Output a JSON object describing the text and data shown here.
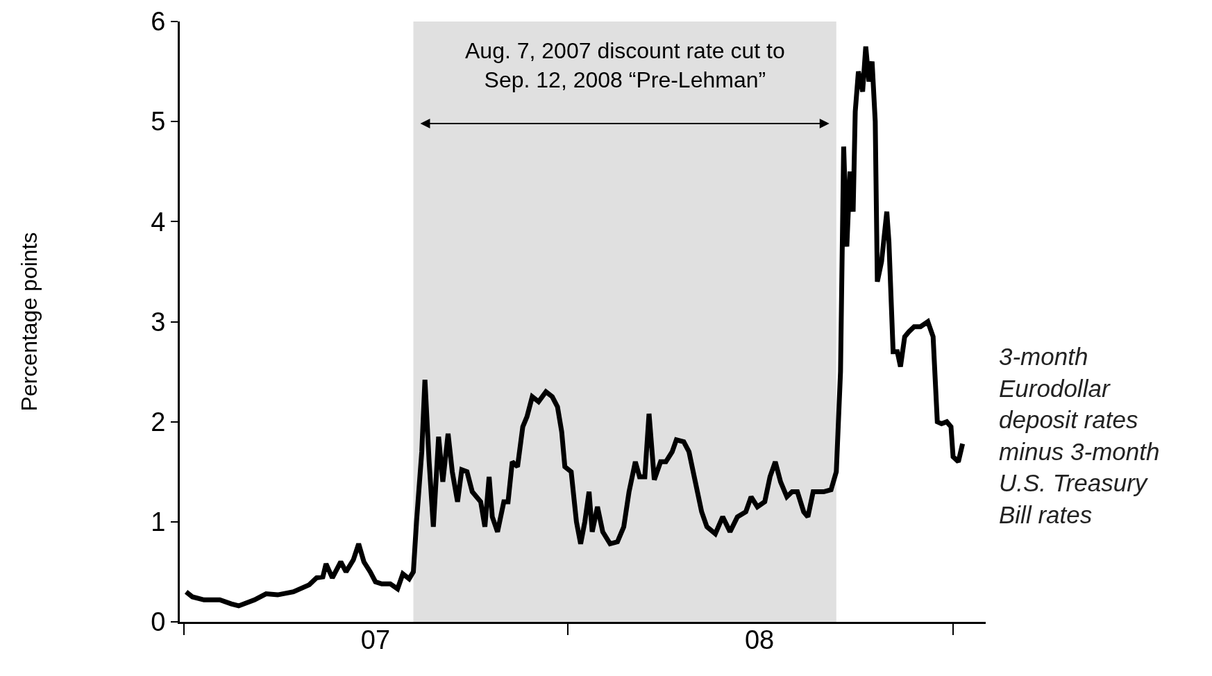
{
  "chart_data": {
    "type": "line",
    "ylabel": "Percentage points",
    "x": [
      "2007-01-03",
      "2007-01-09",
      "2007-01-20",
      "2007-02-04",
      "2007-02-15",
      "2007-02-22",
      "2007-03-09",
      "2007-03-20",
      "2007-03-31",
      "2007-04-15",
      "2007-04-30",
      "2007-05-07",
      "2007-05-13",
      "2007-05-16",
      "2007-05-22",
      "2007-05-30",
      "2007-06-04",
      "2007-06-11",
      "2007-06-16",
      "2007-06-21",
      "2007-06-27",
      "2007-07-02",
      "2007-07-08",
      "2007-07-16",
      "2007-07-23",
      "2007-07-28",
      "2007-08-03",
      "2007-08-07",
      "2007-08-10",
      "2007-08-15",
      "2007-08-18",
      "2007-08-22",
      "2007-08-26",
      "2007-08-31",
      "2007-09-04",
      "2007-09-09",
      "2007-09-13",
      "2007-09-18",
      "2007-09-22",
      "2007-09-27",
      "2007-10-02",
      "2007-10-10",
      "2007-10-14",
      "2007-10-18",
      "2007-10-21",
      "2007-10-26",
      "2007-11-01",
      "2007-11-05",
      "2007-11-09",
      "2007-11-14",
      "2007-11-19",
      "2007-11-23",
      "2007-11-28",
      "2007-12-04",
      "2007-12-11",
      "2007-12-17",
      "2007-12-22",
      "2007-12-26",
      "2007-12-29",
      "2008-01-04",
      "2008-01-09",
      "2008-01-13",
      "2008-01-17",
      "2008-01-21",
      "2008-01-24",
      "2008-01-29",
      "2008-02-03",
      "2008-02-10",
      "2008-02-17",
      "2008-02-23",
      "2008-02-28",
      "2008-03-05",
      "2008-03-09",
      "2008-03-14",
      "2008-03-18",
      "2008-03-23",
      "2008-03-29",
      "2008-04-03",
      "2008-04-09",
      "2008-04-13",
      "2008-04-20",
      "2008-04-25",
      "2008-05-01",
      "2008-05-07",
      "2008-05-12",
      "2008-05-20",
      "2008-05-27",
      "2008-06-03",
      "2008-06-10",
      "2008-06-18",
      "2008-06-23",
      "2008-06-29",
      "2008-07-06",
      "2008-07-11",
      "2008-07-16",
      "2008-07-21",
      "2008-07-27",
      "2008-08-01",
      "2008-08-06",
      "2008-08-12",
      "2008-08-16",
      "2008-08-21",
      "2008-08-31",
      "2008-09-07",
      "2008-09-12",
      "2008-09-16",
      "2008-09-19",
      "2008-09-22",
      "2008-09-25",
      "2008-09-28",
      "2008-09-30",
      "2008-10-03",
      "2008-10-07",
      "2008-10-10",
      "2008-10-13",
      "2008-10-16",
      "2008-10-19",
      "2008-10-21",
      "2008-10-25",
      "2008-10-30",
      "2008-11-01",
      "2008-11-05",
      "2008-11-09",
      "2008-11-12",
      "2008-11-16",
      "2008-11-20",
      "2008-11-25",
      "2008-12-01",
      "2008-12-08",
      "2008-12-13",
      "2008-12-17",
      "2008-12-21",
      "2008-12-26",
      "2008-12-30",
      "2009-01-01",
      "2009-01-06",
      "2009-01-10"
    ],
    "series": [
      {
        "name": "3-month Eurodollar deposit rates minus 3-month U.S. Treasury Bill rates",
        "color": "#000000",
        "values": [
          0.3,
          0.25,
          0.22,
          0.22,
          0.18,
          0.16,
          0.22,
          0.28,
          0.27,
          0.3,
          0.37,
          0.44,
          0.45,
          0.58,
          0.44,
          0.6,
          0.5,
          0.62,
          0.78,
          0.6,
          0.5,
          0.4,
          0.38,
          0.38,
          0.33,
          0.48,
          0.43,
          0.5,
          1.0,
          1.7,
          2.42,
          1.6,
          0.95,
          1.85,
          1.4,
          1.88,
          1.5,
          1.2,
          1.52,
          1.5,
          1.3,
          1.2,
          0.95,
          1.45,
          1.05,
          0.9,
          1.2,
          1.2,
          1.6,
          1.55,
          1.95,
          2.05,
          2.25,
          2.2,
          2.3,
          2.25,
          2.15,
          1.9,
          1.55,
          1.5,
          1.0,
          0.78,
          1.0,
          1.3,
          0.9,
          1.15,
          0.9,
          0.78,
          0.8,
          0.95,
          1.3,
          1.6,
          1.45,
          1.45,
          2.08,
          1.42,
          1.6,
          1.6,
          1.7,
          1.82,
          1.8,
          1.7,
          1.4,
          1.1,
          0.95,
          0.88,
          1.05,
          0.9,
          1.05,
          1.1,
          1.25,
          1.15,
          1.2,
          1.45,
          1.6,
          1.4,
          1.25,
          1.3,
          1.3,
          1.1,
          1.05,
          1.3,
          1.3,
          1.32,
          1.5,
          2.5,
          4.75,
          3.75,
          4.5,
          4.1,
          5.1,
          5.5,
          5.3,
          5.75,
          5.4,
          5.6,
          5.0,
          3.4,
          3.6,
          4.1,
          3.8,
          2.7,
          2.7,
          2.55,
          2.85,
          2.9,
          2.95,
          2.95,
          3.0,
          2.85,
          2.0,
          1.98,
          2.0,
          1.95,
          1.65,
          1.6,
          1.78
        ]
      }
    ],
    "xlim": [
      "2006-12-28",
      "2009-02-01"
    ],
    "xticks": [
      {
        "value": "2007-01-01",
        "label": null
      },
      {
        "value": "2007-07-02",
        "label": "07"
      },
      {
        "value": "2008-01-01",
        "label": null
      },
      {
        "value": "2008-07-01",
        "label": "08"
      },
      {
        "value": "2009-01-01",
        "label": null
      }
    ],
    "ylim": [
      0,
      6
    ],
    "yticks": [
      0,
      1,
      2,
      3,
      4,
      5,
      6
    ],
    "bands": [
      {
        "axis": "x",
        "from": "2007-08-07",
        "to": "2008-09-12",
        "label": "Aug. 7, 2007 discount rate cut to\nSep. 12, 2008 “Pre-Lehman”",
        "color": "#e0e0e0"
      }
    ],
    "grid": false,
    "legend": false,
    "line_style": "solid",
    "marker": "none"
  }
}
